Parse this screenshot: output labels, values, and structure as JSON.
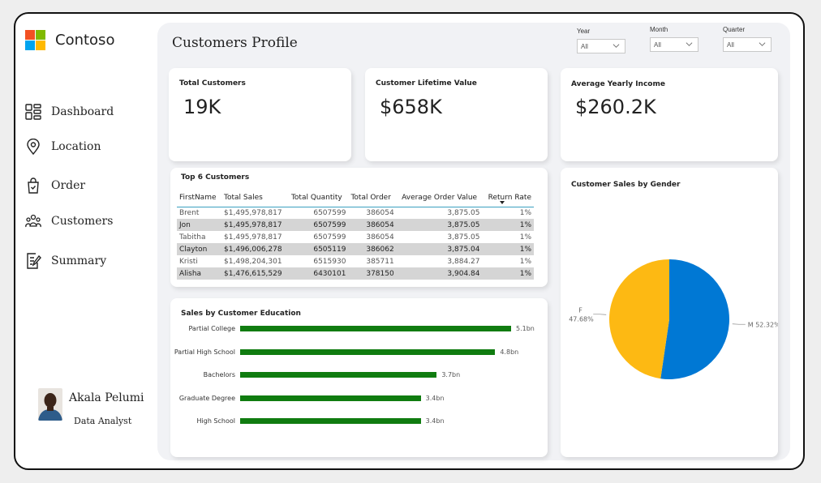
{
  "brand": {
    "name": "Contoso",
    "logo_colors": [
      "#f25022",
      "#7fba00",
      "#00a4ef",
      "#ffb900"
    ]
  },
  "sidebar": {
    "items": [
      {
        "label": "Dashboard",
        "icon": "dashboard-icon"
      },
      {
        "label": "Location",
        "icon": "location-pin-icon"
      },
      {
        "label": "Order",
        "icon": "shopping-bag-icon"
      },
      {
        "label": "Customers",
        "icon": "people-icon"
      },
      {
        "label": "Summary",
        "icon": "document-edit-icon"
      }
    ]
  },
  "profile": {
    "name": "Akala Pelumi",
    "role": "Data Analyst"
  },
  "header": {
    "title": "Customers Profile"
  },
  "filters": [
    {
      "label": "Year",
      "value": "All"
    },
    {
      "label": "Month",
      "value": "All"
    },
    {
      "label": "Quarter",
      "value": "All"
    }
  ],
  "kpis": {
    "total_customers": {
      "title": "Total Customers",
      "value": "19K"
    },
    "clv": {
      "title": "Customer Lifetime Value",
      "value": "$658K"
    },
    "income": {
      "title": "Average Yearly Income",
      "value": "$260.2K"
    }
  },
  "top_customers": {
    "title": "Top 6 Customers",
    "columns": [
      "FirstName",
      "Total Sales",
      "Total Quantity",
      "Total Order",
      "Average Order Value",
      "Return Rate"
    ],
    "rows": [
      [
        "Brent",
        "$1,495,978,817",
        "6507599",
        "386054",
        "3,875.05",
        "1%"
      ],
      [
        "Jon",
        "$1,495,978,817",
        "6507599",
        "386054",
        "3,875.05",
        "1%"
      ],
      [
        "Tabitha",
        "$1,495,978,817",
        "6507599",
        "386054",
        "3,875.05",
        "1%"
      ],
      [
        "Clayton",
        "$1,496,006,278",
        "6505119",
        "386062",
        "3,875.04",
        "1%"
      ],
      [
        "Kristi",
        "$1,498,204,301",
        "6515930",
        "385711",
        "3,884.27",
        "1%"
      ],
      [
        "Alisha",
        "$1,476,615,529",
        "6430101",
        "378150",
        "3,904.84",
        "1%"
      ]
    ]
  },
  "education_chart": {
    "title": "Sales by Customer Education",
    "bar_color": "#107c10",
    "bars": [
      {
        "label": "Partial College",
        "value": 5.1,
        "display": "5.1bn"
      },
      {
        "label": "Partial High School",
        "value": 4.8,
        "display": "4.8bn"
      },
      {
        "label": "Bachelors",
        "value": 3.7,
        "display": "3.7bn"
      },
      {
        "label": "Graduate Degree",
        "value": 3.4,
        "display": "3.4bn"
      },
      {
        "label": "High School",
        "value": 3.4,
        "display": "3.4bn"
      }
    ]
  },
  "gender_chart": {
    "title": "Customer Sales by Gender",
    "slices": [
      {
        "label": "M",
        "display": "M 52.32%",
        "value": 52.32,
        "color": "#0078d4"
      },
      {
        "label": "F",
        "display": "47.68%",
        "value": 47.68,
        "color": "#fdb913"
      }
    ]
  },
  "chart_data": [
    {
      "type": "bar",
      "title": "Sales by Customer Education",
      "orientation": "horizontal",
      "categories": [
        "Partial College",
        "Partial High School",
        "Bachelors",
        "Graduate Degree",
        "High School"
      ],
      "values": [
        5.1,
        4.8,
        3.7,
        3.4,
        3.4
      ],
      "value_labels": [
        "5.1bn",
        "4.8bn",
        "3.7bn",
        "3.4bn",
        "3.4bn"
      ],
      "grid": false
    },
    {
      "type": "pie",
      "title": "Customer Sales by Gender",
      "categories": [
        "M",
        "F"
      ],
      "values": [
        52.32,
        47.68
      ],
      "value_labels": [
        "M 52.32%",
        "47.68%"
      ]
    }
  ]
}
